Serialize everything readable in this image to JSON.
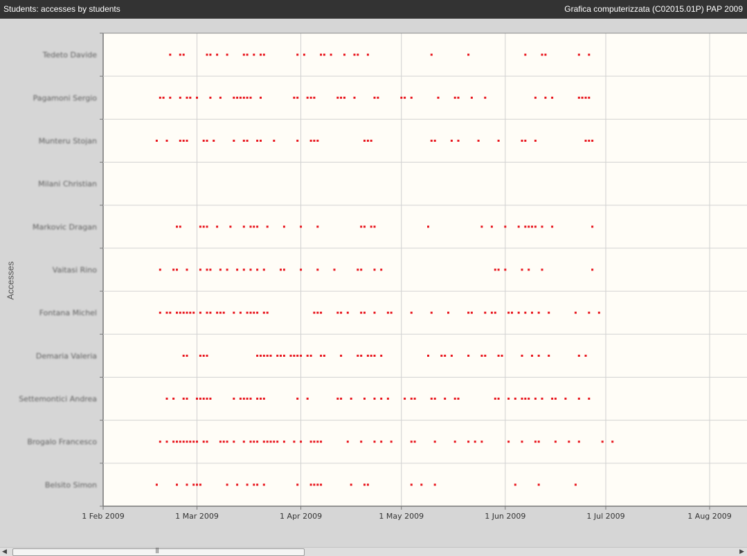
{
  "window": {
    "title_left": "Students: accesses by students",
    "title_right": "Grafica computerizzata (C02015.01P) PAP 2009"
  },
  "chart_data": {
    "type": "scatter",
    "ylabel": "Accesses",
    "x_axis": {
      "type": "date",
      "range": [
        "2009-02-01",
        "2009-08-14"
      ],
      "ticks": [
        "2009-02-01",
        "2009-03-01",
        "2009-04-01",
        "2009-05-01",
        "2009-06-01",
        "2009-07-01",
        "2009-08-01"
      ],
      "tick_labels": [
        "1 Feb 2009",
        "1 Mar 2009",
        "1 Apr 2009",
        "1 May 2009",
        "1 Jun 2009",
        "1 Jul 2009",
        "1 Aug 2009"
      ]
    },
    "grid": true,
    "marker_color": "#e8141c",
    "series": [
      {
        "name": "Tedeto Davide",
        "x": [
          "2009-02-21",
          "2009-02-24",
          "2009-02-25",
          "2009-03-04",
          "2009-03-05",
          "2009-03-07",
          "2009-03-10",
          "2009-03-15",
          "2009-03-16",
          "2009-03-18",
          "2009-03-20",
          "2009-03-21",
          "2009-03-31",
          "2009-04-02",
          "2009-04-07",
          "2009-04-08",
          "2009-04-10",
          "2009-04-14",
          "2009-04-17",
          "2009-04-18",
          "2009-04-21",
          "2009-05-10",
          "2009-05-21",
          "2009-06-07",
          "2009-06-12",
          "2009-06-13",
          "2009-06-23",
          "2009-06-26"
        ]
      },
      {
        "name": "Pagamoni Sergio",
        "x": [
          "2009-02-18",
          "2009-02-19",
          "2009-02-21",
          "2009-02-24",
          "2009-02-26",
          "2009-02-27",
          "2009-03-01",
          "2009-03-05",
          "2009-03-08",
          "2009-03-12",
          "2009-03-13",
          "2009-03-14",
          "2009-03-15",
          "2009-03-16",
          "2009-03-17",
          "2009-03-20",
          "2009-03-30",
          "2009-03-31",
          "2009-04-03",
          "2009-04-04",
          "2009-04-05",
          "2009-04-12",
          "2009-04-13",
          "2009-04-14",
          "2009-04-17",
          "2009-04-23",
          "2009-04-24",
          "2009-05-01",
          "2009-05-02",
          "2009-05-04",
          "2009-05-12",
          "2009-05-17",
          "2009-05-18",
          "2009-05-22",
          "2009-05-26",
          "2009-06-10",
          "2009-06-13",
          "2009-06-15",
          "2009-06-23",
          "2009-06-24",
          "2009-06-25",
          "2009-06-26"
        ]
      },
      {
        "name": "Munteru Stojan",
        "x": [
          "2009-02-17",
          "2009-02-20",
          "2009-02-24",
          "2009-02-25",
          "2009-02-26",
          "2009-03-03",
          "2009-03-04",
          "2009-03-06",
          "2009-03-12",
          "2009-03-15",
          "2009-03-16",
          "2009-03-19",
          "2009-03-20",
          "2009-03-24",
          "2009-03-31",
          "2009-04-04",
          "2009-04-05",
          "2009-04-06",
          "2009-04-20",
          "2009-04-21",
          "2009-04-22",
          "2009-05-10",
          "2009-05-11",
          "2009-05-16",
          "2009-05-18",
          "2009-05-24",
          "2009-05-30",
          "2009-06-06",
          "2009-06-07",
          "2009-06-10",
          "2009-06-25",
          "2009-06-26",
          "2009-06-27"
        ]
      },
      {
        "name": "Milani Christian",
        "x": []
      },
      {
        "name": "Markovic Dragan",
        "x": [
          "2009-02-23",
          "2009-02-24",
          "2009-03-02",
          "2009-03-03",
          "2009-03-04",
          "2009-03-07",
          "2009-03-11",
          "2009-03-15",
          "2009-03-17",
          "2009-03-18",
          "2009-03-19",
          "2009-03-22",
          "2009-03-27",
          "2009-04-01",
          "2009-04-06",
          "2009-04-19",
          "2009-04-20",
          "2009-04-22",
          "2009-04-23",
          "2009-05-09",
          "2009-05-25",
          "2009-05-28",
          "2009-06-01",
          "2009-06-05",
          "2009-06-07",
          "2009-06-08",
          "2009-06-09",
          "2009-06-10",
          "2009-06-12",
          "2009-06-15",
          "2009-06-27"
        ]
      },
      {
        "name": "Vaitasi Rino",
        "x": [
          "2009-02-18",
          "2009-02-22",
          "2009-02-23",
          "2009-02-26",
          "2009-03-02",
          "2009-03-04",
          "2009-03-05",
          "2009-03-08",
          "2009-03-10",
          "2009-03-13",
          "2009-03-15",
          "2009-03-17",
          "2009-03-19",
          "2009-03-21",
          "2009-03-26",
          "2009-03-27",
          "2009-04-01",
          "2009-04-06",
          "2009-04-11",
          "2009-04-18",
          "2009-04-19",
          "2009-04-23",
          "2009-04-25",
          "2009-05-29",
          "2009-05-30",
          "2009-06-01",
          "2009-06-06",
          "2009-06-08",
          "2009-06-12",
          "2009-06-27"
        ]
      },
      {
        "name": "Fontana Michel",
        "x": [
          "2009-02-18",
          "2009-02-20",
          "2009-02-21",
          "2009-02-23",
          "2009-02-24",
          "2009-02-25",
          "2009-02-26",
          "2009-02-27",
          "2009-02-28",
          "2009-03-02",
          "2009-03-04",
          "2009-03-05",
          "2009-03-07",
          "2009-03-08",
          "2009-03-09",
          "2009-03-12",
          "2009-03-14",
          "2009-03-16",
          "2009-03-17",
          "2009-03-18",
          "2009-03-19",
          "2009-03-21",
          "2009-03-22",
          "2009-04-05",
          "2009-04-06",
          "2009-04-07",
          "2009-04-12",
          "2009-04-13",
          "2009-04-15",
          "2009-04-19",
          "2009-04-20",
          "2009-04-23",
          "2009-04-27",
          "2009-04-28",
          "2009-05-04",
          "2009-05-10",
          "2009-05-15",
          "2009-05-21",
          "2009-05-22",
          "2009-05-26",
          "2009-05-28",
          "2009-05-29",
          "2009-06-02",
          "2009-06-03",
          "2009-06-05",
          "2009-06-07",
          "2009-06-09",
          "2009-06-11",
          "2009-06-14",
          "2009-06-22",
          "2009-06-26",
          "2009-06-29"
        ]
      },
      {
        "name": "Demaria Valeria",
        "x": [
          "2009-02-25",
          "2009-02-26",
          "2009-03-02",
          "2009-03-03",
          "2009-03-04",
          "2009-03-19",
          "2009-03-20",
          "2009-03-21",
          "2009-03-22",
          "2009-03-23",
          "2009-03-25",
          "2009-03-26",
          "2009-03-27",
          "2009-03-29",
          "2009-03-30",
          "2009-03-31",
          "2009-04-01",
          "2009-04-03",
          "2009-04-04",
          "2009-04-07",
          "2009-04-08",
          "2009-04-13",
          "2009-04-18",
          "2009-04-19",
          "2009-04-21",
          "2009-04-22",
          "2009-04-23",
          "2009-04-25",
          "2009-05-09",
          "2009-05-13",
          "2009-05-14",
          "2009-05-16",
          "2009-05-21",
          "2009-05-25",
          "2009-05-26",
          "2009-05-30",
          "2009-05-31",
          "2009-06-06",
          "2009-06-09",
          "2009-06-11",
          "2009-06-14",
          "2009-06-23",
          "2009-06-25"
        ]
      },
      {
        "name": "Settemontici Andrea",
        "x": [
          "2009-02-20",
          "2009-02-22",
          "2009-02-25",
          "2009-02-26",
          "2009-03-01",
          "2009-03-02",
          "2009-03-03",
          "2009-03-04",
          "2009-03-05",
          "2009-03-12",
          "2009-03-14",
          "2009-03-15",
          "2009-03-16",
          "2009-03-17",
          "2009-03-19",
          "2009-03-20",
          "2009-03-21",
          "2009-03-31",
          "2009-04-03",
          "2009-04-12",
          "2009-04-13",
          "2009-04-16",
          "2009-04-20",
          "2009-04-23",
          "2009-04-25",
          "2009-04-27",
          "2009-05-02",
          "2009-05-04",
          "2009-05-05",
          "2009-05-10",
          "2009-05-11",
          "2009-05-14",
          "2009-05-17",
          "2009-05-18",
          "2009-05-29",
          "2009-05-30",
          "2009-06-02",
          "2009-06-04",
          "2009-06-06",
          "2009-06-07",
          "2009-06-08",
          "2009-06-10",
          "2009-06-12",
          "2009-06-15",
          "2009-06-16",
          "2009-06-19",
          "2009-06-23",
          "2009-06-26"
        ]
      },
      {
        "name": "Brogalo Francesco",
        "x": [
          "2009-02-18",
          "2009-02-20",
          "2009-02-22",
          "2009-02-23",
          "2009-02-24",
          "2009-02-25",
          "2009-02-26",
          "2009-02-27",
          "2009-02-28",
          "2009-03-01",
          "2009-03-03",
          "2009-03-04",
          "2009-03-08",
          "2009-03-09",
          "2009-03-10",
          "2009-03-12",
          "2009-03-15",
          "2009-03-17",
          "2009-03-18",
          "2009-03-19",
          "2009-03-21",
          "2009-03-22",
          "2009-03-23",
          "2009-03-24",
          "2009-03-25",
          "2009-03-27",
          "2009-03-30",
          "2009-04-01",
          "2009-04-04",
          "2009-04-05",
          "2009-04-06",
          "2009-04-07",
          "2009-04-15",
          "2009-04-19",
          "2009-04-23",
          "2009-04-25",
          "2009-04-28",
          "2009-05-04",
          "2009-05-05",
          "2009-05-11",
          "2009-05-17",
          "2009-05-21",
          "2009-05-23",
          "2009-05-25",
          "2009-06-02",
          "2009-06-06",
          "2009-06-10",
          "2009-06-11",
          "2009-06-16",
          "2009-06-20",
          "2009-06-23",
          "2009-06-30",
          "2009-07-03"
        ]
      },
      {
        "name": "Belsito Simon",
        "x": [
          "2009-02-17",
          "2009-02-23",
          "2009-02-26",
          "2009-02-28",
          "2009-03-01",
          "2009-03-02",
          "2009-03-10",
          "2009-03-13",
          "2009-03-16",
          "2009-03-18",
          "2009-03-19",
          "2009-03-21",
          "2009-03-31",
          "2009-04-04",
          "2009-04-05",
          "2009-04-06",
          "2009-04-07",
          "2009-04-16",
          "2009-04-20",
          "2009-04-21",
          "2009-05-04",
          "2009-05-07",
          "2009-05-11",
          "2009-06-04",
          "2009-06-11",
          "2009-06-22"
        ]
      }
    ]
  }
}
